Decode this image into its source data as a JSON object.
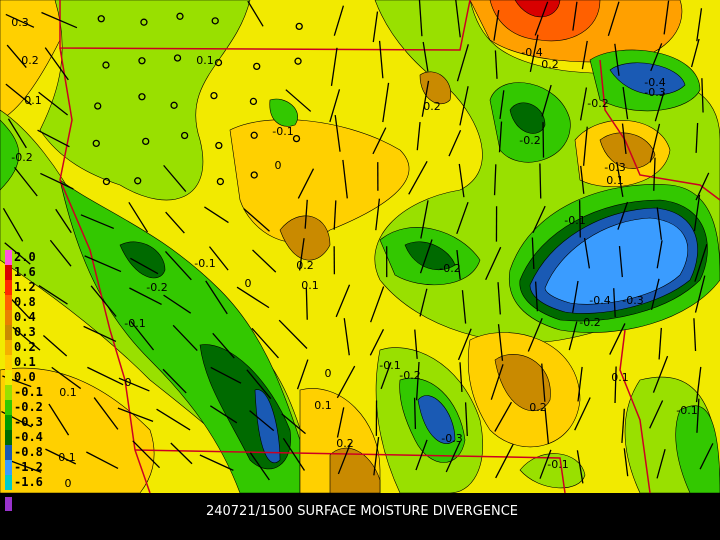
{
  "caption": "240721/1500 SURFACE MOISTURE DIVERGENCE",
  "legend": {
    "items": [
      {
        "label": "2.0",
        "color": "#ff55dd"
      },
      {
        "label": "1.6",
        "color": "#d80000"
      },
      {
        "label": "1.2",
        "color": "#ff2a00"
      },
      {
        "label": "0.8",
        "color": "#ff6000"
      },
      {
        "label": "0.4",
        "color": "#e88000"
      },
      {
        "label": "0.3",
        "color": "#c98a00"
      },
      {
        "label": "0.2",
        "color": "#f5b000"
      },
      {
        "label": "0.1",
        "color": "#ffd000"
      },
      {
        "label": "0.0",
        "color": "#f2ea00"
      },
      {
        "label": "-0.1",
        "color": "#99e000"
      },
      {
        "label": "-0.2",
        "color": "#33c800"
      },
      {
        "label": "-0.3",
        "color": "#009a00"
      },
      {
        "label": "-0.4",
        "color": "#006a00"
      },
      {
        "label": "-0.8",
        "color": "#1a5ab4"
      },
      {
        "label": "-1.2",
        "color": "#3a9cff"
      },
      {
        "label": "-1.6",
        "color": "#00cccc"
      }
    ]
  },
  "contour_labels": [
    "0.3",
    "0.2",
    "0.1",
    "-0.2",
    "0.1",
    "-0.1",
    "0",
    "0.2",
    "-0.4",
    "0.2",
    "-0.4",
    "-0.3",
    "-0.2",
    "-0.2",
    "-0.3",
    "0.1",
    "-0.1",
    "-0.2",
    "0.2",
    "0.1",
    "-0.1",
    "0",
    "-0.2",
    "-0.1",
    "-0.4",
    "-0.3",
    "-0.2",
    "-0.1",
    "-0.2",
    "0",
    "0.1",
    "0.2",
    "-0.1",
    "0.1",
    "-0.3",
    "0.2",
    "0",
    "0.1",
    "0.1",
    "0",
    "-0.1"
  ]
}
